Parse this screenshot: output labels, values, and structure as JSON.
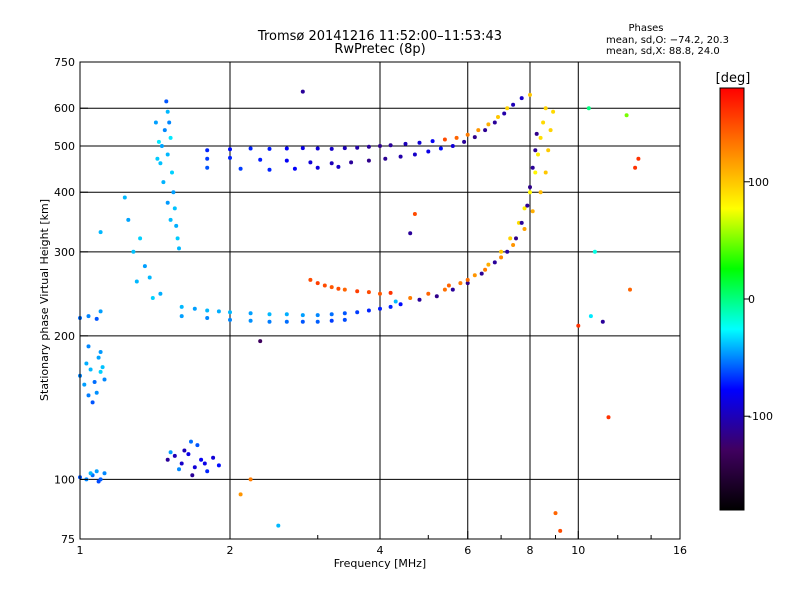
{
  "chart_data": {
    "type": "scatter",
    "title": "Tromsø 20141216 11:52:00–11:53:43",
    "subtitle": "RwPretec (8p)",
    "xlabel": "Frequency [MHz]",
    "ylabel": "Stationary phase Virtual Height [km]",
    "x_scale": "log",
    "y_scale": "log",
    "xlim": [
      1,
      16
    ],
    "ylim": [
      75,
      750
    ],
    "x_ticks": [
      1,
      2,
      4,
      6,
      8,
      10,
      16
    ],
    "x_tick_labels": [
      "1",
      "2",
      "4",
      "6",
      "8",
      "10",
      "16"
    ],
    "y_ticks": [
      75,
      100,
      200,
      300,
      400,
      500,
      600,
      750
    ],
    "y_tick_labels": [
      "75",
      "100",
      "200",
      "300",
      "400",
      "500",
      "600",
      "750"
    ],
    "grid": true,
    "stats": {
      "heading": "Phases",
      "line_o": "mean, sd,O: −74.2, 20.3",
      "line_x": "mean, sd,X:  88.8, 24.0"
    },
    "colorbar": {
      "label": "[deg]",
      "range": [
        -180,
        180
      ],
      "ticks": [
        100,
        0,
        -100
      ],
      "tick_labels": [
        "100",
        "0",
        "-100"
      ],
      "colors": [
        "#ff0000",
        "#ff8000",
        "#ffff00",
        "#00ff00",
        "#00ffff",
        "#0000ff",
        "#400060",
        "#000000"
      ]
    },
    "series": [
      {
        "points": [
          [
            1.0,
            101,
            -60
          ],
          [
            1.03,
            100,
            -50
          ],
          [
            1.06,
            102,
            -55
          ],
          [
            1.08,
            104,
            -45
          ],
          [
            1.1,
            100,
            -58
          ],
          [
            1.12,
            103,
            -50
          ],
          [
            1.05,
            103,
            -40
          ],
          [
            1.09,
            99,
            -62
          ]
        ]
      },
      {
        "points": [
          [
            1.0,
            165,
            -50
          ],
          [
            1.02,
            158,
            -45
          ],
          [
            1.04,
            150,
            -52
          ],
          [
            1.05,
            170,
            -40
          ],
          [
            1.07,
            160,
            -55
          ],
          [
            1.08,
            152,
            -48
          ],
          [
            1.1,
            168,
            -35
          ],
          [
            1.12,
            162,
            -50
          ],
          [
            1.03,
            175,
            -42
          ],
          [
            1.06,
            145,
            -60
          ],
          [
            1.09,
            180,
            -44
          ],
          [
            1.11,
            172,
            -38
          ],
          [
            1.04,
            190,
            -50
          ],
          [
            1.1,
            185,
            -46
          ]
        ]
      },
      {
        "points": [
          [
            1.0,
            218,
            -55
          ],
          [
            1.04,
            220,
            -50
          ],
          [
            1.08,
            217,
            -60
          ],
          [
            1.1,
            225,
            -45
          ]
        ]
      },
      {
        "points": [
          [
            1.5,
            110,
            -110
          ],
          [
            1.55,
            112,
            -100
          ],
          [
            1.6,
            108,
            -95
          ],
          [
            1.65,
            113,
            -85
          ],
          [
            1.7,
            106,
            -90
          ],
          [
            1.75,
            110,
            -80
          ],
          [
            1.8,
            104,
            -70
          ],
          [
            1.68,
            102,
            -110
          ],
          [
            1.72,
            118,
            -60
          ],
          [
            1.58,
            105,
            -50
          ],
          [
            1.62,
            115,
            -100
          ],
          [
            1.78,
            108,
            -85
          ],
          [
            1.85,
            111,
            -90
          ],
          [
            1.9,
            107,
            -75
          ],
          [
            1.52,
            114,
            -45
          ],
          [
            1.67,
            120,
            -55
          ]
        ]
      },
      {
        "points": [
          [
            1.5,
            590,
            -40
          ],
          [
            1.51,
            560,
            -50
          ],
          [
            1.52,
            520,
            -30
          ],
          [
            1.5,
            480,
            -40
          ],
          [
            1.53,
            440,
            -35
          ],
          [
            1.54,
            400,
            -45
          ],
          [
            1.55,
            370,
            -38
          ],
          [
            1.56,
            340,
            -42
          ],
          [
            1.57,
            320,
            -36
          ],
          [
            1.58,
            305,
            -40
          ],
          [
            1.49,
            620,
            -60
          ],
          [
            1.48,
            540,
            -50
          ],
          [
            1.46,
            500,
            -44
          ],
          [
            1.45,
            460,
            -38
          ],
          [
            1.47,
            420,
            -41
          ],
          [
            1.5,
            380,
            -46
          ],
          [
            1.42,
            560,
            -45
          ],
          [
            1.44,
            510,
            -30
          ],
          [
            1.43,
            470,
            -36
          ],
          [
            1.52,
            350,
            -39
          ]
        ]
      },
      {
        "points": [
          [
            1.4,
            240,
            -35
          ],
          [
            1.3,
            260,
            -40
          ],
          [
            1.35,
            280,
            -45
          ],
          [
            1.28,
            300,
            -38
          ],
          [
            1.45,
            245,
            -42
          ],
          [
            1.32,
            320,
            -35
          ],
          [
            1.25,
            350,
            -44
          ],
          [
            1.38,
            265,
            -40
          ]
        ]
      },
      {
        "points": [
          [
            1.6,
            230,
            -40
          ],
          [
            1.7,
            228,
            -45
          ],
          [
            1.8,
            226,
            -40
          ],
          [
            1.9,
            225,
            -42
          ],
          [
            2.0,
            224,
            -40
          ],
          [
            2.2,
            223,
            -45
          ],
          [
            2.4,
            222,
            -40
          ],
          [
            2.6,
            222,
            -42
          ],
          [
            2.8,
            221,
            -45
          ],
          [
            3.0,
            221,
            -50
          ],
          [
            3.2,
            222,
            -55
          ],
          [
            3.4,
            223,
            -60
          ],
          [
            3.6,
            224,
            -65
          ],
          [
            3.8,
            226,
            -70
          ],
          [
            4.0,
            228,
            -72
          ],
          [
            4.2,
            230,
            -70
          ],
          [
            4.4,
            233,
            -75
          ]
        ]
      },
      {
        "points": [
          [
            1.6,
            220,
            -45
          ],
          [
            1.8,
            218,
            -50
          ],
          [
            2.0,
            216,
            -50
          ],
          [
            2.2,
            215,
            -48
          ],
          [
            2.4,
            214,
            -52
          ],
          [
            2.6,
            214,
            -55
          ],
          [
            2.8,
            214,
            -60
          ],
          [
            3.0,
            214,
            -58
          ],
          [
            3.2,
            215,
            -65
          ],
          [
            3.4,
            216,
            -62
          ]
        ]
      },
      {
        "points": [
          [
            2.9,
            262,
            150
          ],
          [
            3.0,
            258,
            155
          ],
          [
            3.1,
            255,
            150
          ],
          [
            3.2,
            253,
            145
          ],
          [
            3.3,
            251,
            150
          ],
          [
            3.4,
            250,
            140
          ],
          [
            3.6,
            248,
            155
          ],
          [
            3.8,
            247,
            150
          ],
          [
            4.0,
            245,
            145
          ],
          [
            4.2,
            246,
            160
          ]
        ]
      },
      {
        "points": [
          [
            4.3,
            236,
            -40
          ],
          [
            4.6,
            240,
            130
          ],
          [
            5.0,
            245,
            140
          ],
          [
            5.4,
            250,
            135
          ],
          [
            5.8,
            258,
            130
          ],
          [
            6.2,
            268,
            120
          ],
          [
            6.6,
            282,
            110
          ],
          [
            7.0,
            300,
            100
          ],
          [
            7.3,
            320,
            95
          ],
          [
            7.6,
            345,
            90
          ],
          [
            7.8,
            370,
            85
          ],
          [
            8.0,
            400,
            80
          ],
          [
            8.2,
            440,
            80
          ],
          [
            8.3,
            480,
            85
          ],
          [
            8.4,
            520,
            90
          ],
          [
            8.5,
            560,
            92
          ],
          [
            8.6,
            600,
            95
          ]
        ]
      },
      {
        "points": [
          [
            4.8,
            238,
            -110
          ],
          [
            5.2,
            242,
            -115
          ],
          [
            5.6,
            250,
            -110
          ],
          [
            6.0,
            258,
            -115
          ],
          [
            6.4,
            270,
            -112
          ],
          [
            6.8,
            285,
            -110
          ],
          [
            7.2,
            300,
            -108
          ],
          [
            7.5,
            320,
            -115
          ],
          [
            7.7,
            345,
            -110
          ],
          [
            7.9,
            375,
            -112
          ],
          [
            8.0,
            410,
            -115
          ],
          [
            8.1,
            450,
            -110
          ],
          [
            8.2,
            490,
            -112
          ],
          [
            8.25,
            530,
            -115
          ]
        ]
      },
      {
        "points": [
          [
            5.5,
            255,
            140
          ],
          [
            6.0,
            262,
            135
          ],
          [
            6.5,
            275,
            130
          ],
          [
            7.0,
            292,
            125
          ],
          [
            7.4,
            310,
            120
          ],
          [
            7.8,
            335,
            115
          ],
          [
            8.1,
            365,
            110
          ],
          [
            8.4,
            400,
            105
          ],
          [
            8.6,
            440,
            100
          ],
          [
            8.7,
            490,
            98
          ],
          [
            8.8,
            540,
            95
          ],
          [
            8.9,
            590,
            92
          ]
        ]
      },
      {
        "points": [
          [
            1.8,
            490,
            -70
          ],
          [
            2.0,
            492,
            -75
          ],
          [
            2.2,
            494,
            -70
          ],
          [
            2.4,
            493,
            -72
          ],
          [
            2.6,
            494,
            -80
          ],
          [
            2.8,
            495,
            -85
          ],
          [
            3.0,
            494,
            -90
          ],
          [
            3.2,
            493,
            -95
          ],
          [
            3.4,
            495,
            -100
          ],
          [
            3.6,
            496,
            -105
          ],
          [
            3.8,
            498,
            -110
          ],
          [
            4.0,
            500,
            -115
          ],
          [
            4.2,
            502,
            -110
          ],
          [
            4.5,
            505,
            -100
          ],
          [
            4.8,
            508,
            -90
          ],
          [
            5.1,
            512,
            -80
          ],
          [
            5.4,
            516,
            150
          ],
          [
            5.7,
            520,
            140
          ],
          [
            6.0,
            528,
            130
          ],
          [
            6.3,
            540,
            120
          ],
          [
            6.6,
            555,
            110
          ],
          [
            6.9,
            575,
            100
          ],
          [
            7.2,
            600,
            95
          ]
        ]
      },
      {
        "points": [
          [
            1.8,
            470,
            -65
          ],
          [
            2.0,
            472,
            -70
          ],
          [
            2.3,
            468,
            -72
          ],
          [
            2.6,
            466,
            -80
          ],
          [
            2.9,
            462,
            -90
          ],
          [
            3.2,
            460,
            -100
          ],
          [
            3.5,
            462,
            -110
          ],
          [
            3.8,
            466,
            -115
          ],
          [
            4.1,
            470,
            -112
          ],
          [
            4.4,
            475,
            -105
          ],
          [
            4.7,
            480,
            -95
          ],
          [
            5.0,
            487,
            -85
          ],
          [
            5.3,
            494,
            -75
          ],
          [
            5.6,
            500,
            -90
          ],
          [
            5.9,
            510,
            -110
          ],
          [
            6.2,
            522,
            -115
          ],
          [
            6.5,
            540,
            -112
          ],
          [
            6.8,
            560,
            -110
          ],
          [
            7.1,
            585,
            -105
          ],
          [
            7.4,
            610,
            -100
          ],
          [
            7.7,
            630,
            -95
          ],
          [
            8.0,
            640,
            100
          ]
        ]
      },
      {
        "points": [
          [
            1.8,
            450,
            -60
          ],
          [
            2.1,
            448,
            -65
          ],
          [
            2.4,
            446,
            -70
          ],
          [
            2.7,
            448,
            -78
          ],
          [
            3.0,
            450,
            -88
          ],
          [
            3.3,
            452,
            -95
          ]
        ]
      },
      {
        "points": [
          [
            2.8,
            650,
            -110
          ],
          [
            2.5,
            80,
            -40
          ],
          [
            2.2,
            100,
            130
          ],
          [
            2.1,
            93,
            120
          ],
          [
            2.3,
            195,
            -130
          ],
          [
            4.7,
            360,
            150
          ],
          [
            4.6,
            328,
            -110
          ],
          [
            9.2,
            78,
            150
          ],
          [
            9.0,
            85,
            140
          ],
          [
            10.5,
            600,
            0
          ],
          [
            10.8,
            300,
            -20
          ],
          [
            10.6,
            220,
            -30
          ],
          [
            11.2,
            214,
            -110
          ],
          [
            11.5,
            135,
            160
          ],
          [
            12.5,
            580,
            50
          ],
          [
            12.7,
            250,
            140
          ],
          [
            13.0,
            450,
            160
          ],
          [
            13.2,
            470,
            160
          ],
          [
            10.0,
            210,
            160
          ],
          [
            1.1,
            330,
            -40
          ],
          [
            1.23,
            390,
            -40
          ]
        ]
      }
    ]
  }
}
